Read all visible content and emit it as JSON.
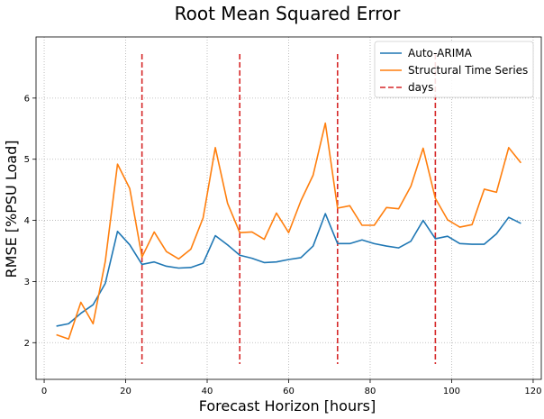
{
  "chart_data": {
    "type": "line",
    "title": "Root Mean Squared Error",
    "xlabel": "Forecast Horizon [hours]",
    "ylabel": "RMSE [%PSU Load]",
    "xlim": [
      -2,
      122
    ],
    "ylim": [
      1.4,
      7.0
    ],
    "xticks": [
      0,
      20,
      40,
      60,
      80,
      100,
      120
    ],
    "yticks": [
      2,
      3,
      4,
      5,
      6
    ],
    "grid": true,
    "legend_position": "top-right",
    "x": [
      3,
      6,
      9,
      12,
      15,
      18,
      21,
      24,
      27,
      30,
      33,
      36,
      39,
      42,
      45,
      48,
      51,
      54,
      57,
      60,
      63,
      66,
      69,
      72,
      75,
      78,
      81,
      84,
      87,
      90,
      93,
      96,
      99,
      102,
      105,
      108,
      111,
      114,
      117
    ],
    "series": [
      {
        "name": "Auto-ARIMA",
        "color": "#1f77b4",
        "values": [
          2.27,
          2.31,
          2.48,
          2.62,
          2.97,
          3.82,
          3.6,
          3.28,
          3.32,
          3.25,
          3.22,
          3.23,
          3.3,
          3.75,
          3.6,
          3.43,
          3.38,
          3.31,
          3.32,
          3.36,
          3.39,
          3.58,
          4.11,
          3.62,
          3.62,
          3.68,
          3.62,
          3.58,
          3.55,
          3.66,
          4.0,
          3.7,
          3.74,
          3.62,
          3.61,
          3.61,
          3.78,
          4.05,
          3.95
        ]
      },
      {
        "name": "Structural Time Series",
        "color": "#ff7f0e",
        "values": [
          2.13,
          2.06,
          2.66,
          2.31,
          3.33,
          4.92,
          4.52,
          3.4,
          3.81,
          3.49,
          3.37,
          3.53,
          4.04,
          5.19,
          4.28,
          3.8,
          3.81,
          3.69,
          4.12,
          3.8,
          4.32,
          4.74,
          5.59,
          4.2,
          4.24,
          3.92,
          3.92,
          4.21,
          4.19,
          4.56,
          5.18,
          4.36,
          4.01,
          3.89,
          3.93,
          4.51,
          4.46,
          5.19,
          4.94
        ]
      }
    ],
    "vlines": {
      "name": "days",
      "color": "#d62728",
      "x": [
        24,
        48,
        72,
        96
      ],
      "ymin": 1.65,
      "ymax": 6.72
    }
  }
}
